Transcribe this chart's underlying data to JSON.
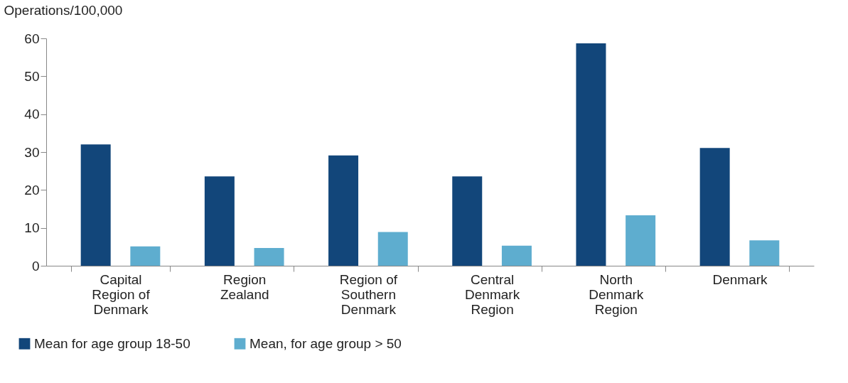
{
  "chart_data": {
    "type": "bar",
    "ylabel": "Operations/100,000",
    "categories": [
      "Capital Region of Denmark",
      "Region Zealand",
      "Region of Southern Denmark",
      "Central Denmark Region",
      "North Denmark Region",
      "Denmark"
    ],
    "series": [
      {
        "name": "Mean for age group 18-50",
        "color": "#12467a",
        "values": [
          32.0,
          23.6,
          29.1,
          23.6,
          58.7,
          31.1
        ]
      },
      {
        "name": "Mean, for age group > 50",
        "color": "#5eadcf",
        "values": [
          5.1,
          4.7,
          8.9,
          5.3,
          13.3,
          6.7
        ]
      }
    ],
    "ylim": [
      0,
      60
    ],
    "yticks": [
      0,
      10,
      20,
      30,
      40,
      50,
      60
    ],
    "grid": false,
    "legend": "bottom left"
  }
}
